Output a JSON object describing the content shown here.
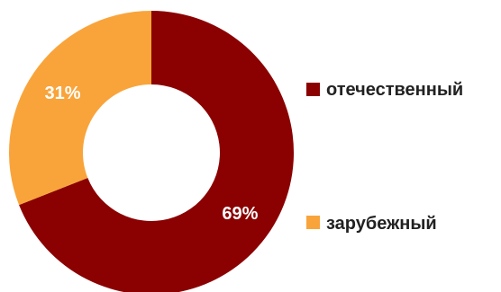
{
  "chart_data": {
    "type": "pie",
    "donut": true,
    "legend_position": "right",
    "series": [
      {
        "name": "отечественный",
        "value": 69,
        "label": "69%",
        "color": "#8b0000"
      },
      {
        "name": "зарубежный",
        "value": 31,
        "label": "31%",
        "color": "#f9a43a"
      }
    ]
  }
}
